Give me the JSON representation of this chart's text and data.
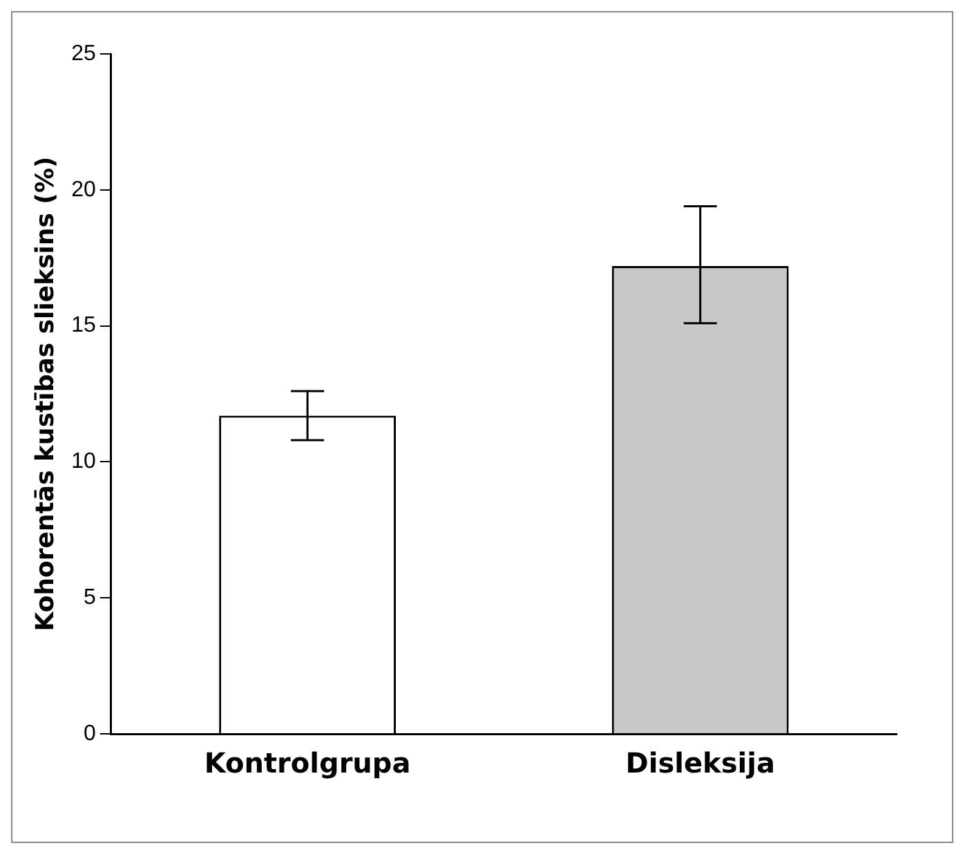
{
  "chart_data": {
    "type": "bar",
    "ylabel": "Kohorentās kustības slieksins (%)",
    "categories": [
      "Kontrolgrupa",
      "Disleksija"
    ],
    "values": [
      11.7,
      17.2
    ],
    "colors": [
      "#ffffff",
      "#c8c8c8"
    ],
    "errors": [
      [
        10.8,
        12.6
      ],
      [
        15.1,
        19.4
      ]
    ],
    "ylim": [
      0,
      25
    ],
    "yticks": [
      0,
      5,
      10,
      15,
      20,
      25
    ],
    "grid": false,
    "legend": false
  }
}
